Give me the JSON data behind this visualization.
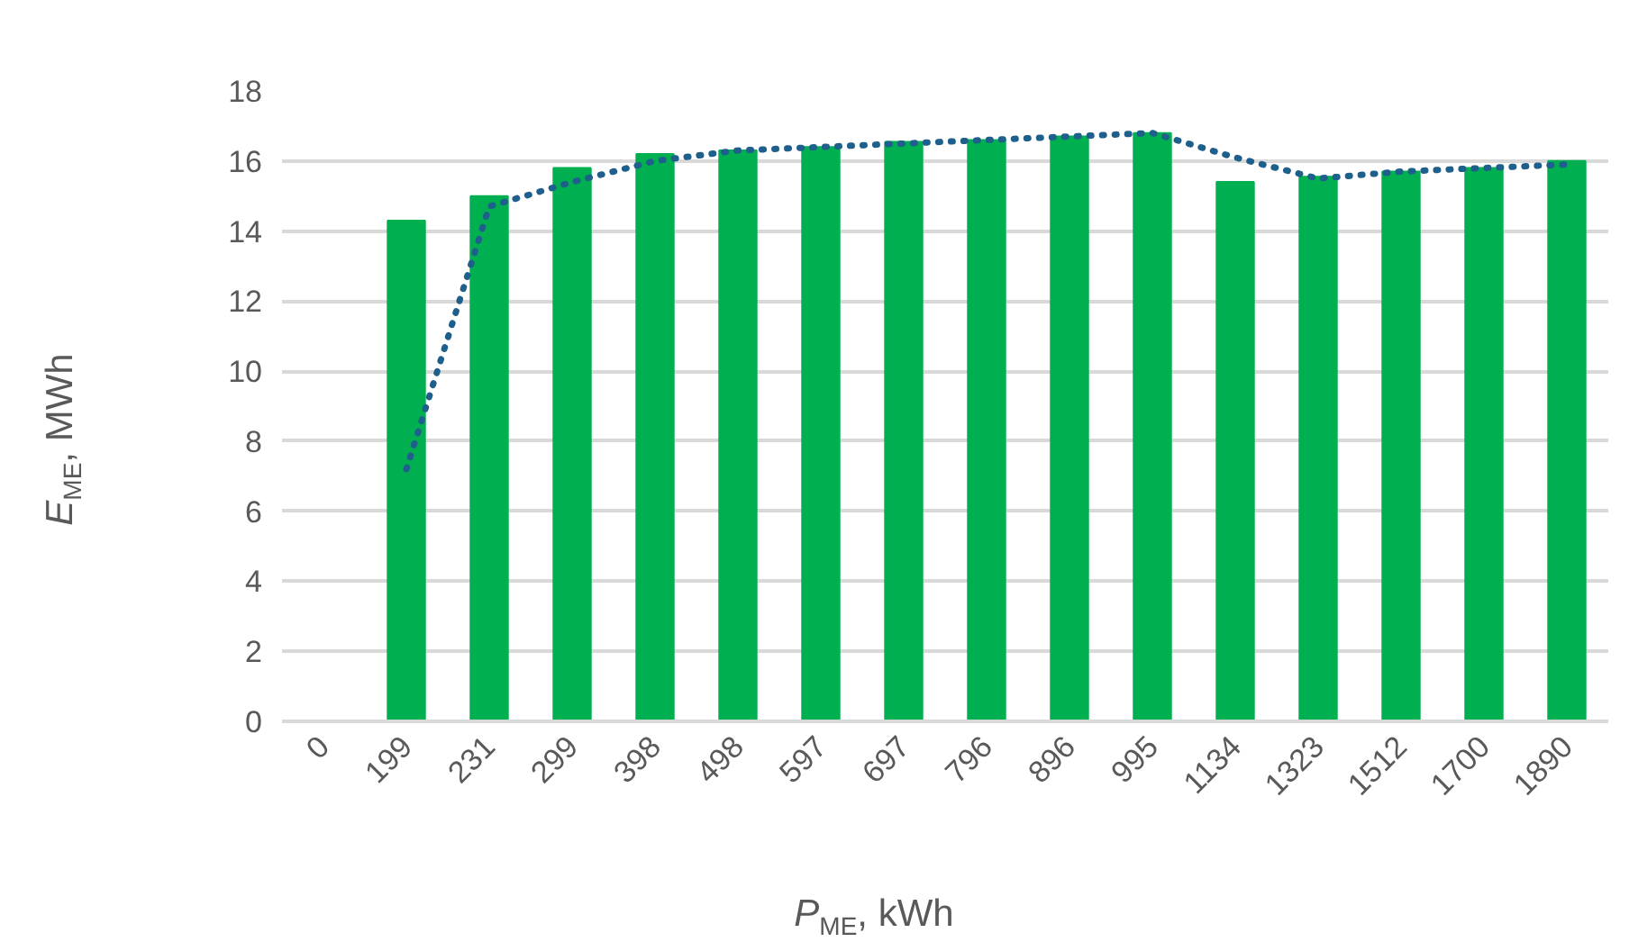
{
  "chart_data": {
    "type": "bar",
    "xlabel": "P$_{ME}$, kWh",
    "ylabel": "E$_{ME}$, MWh",
    "categories": [
      "0",
      "199",
      "231",
      "299",
      "398",
      "498",
      "597",
      "697",
      "796",
      "896",
      "995",
      "1134",
      "1323",
      "1512",
      "1700",
      "1890"
    ],
    "series": [
      {
        "color": "#00b050",
        "values": [
          null,
          14.3,
          15.0,
          15.8,
          16.2,
          16.3,
          16.4,
          16.55,
          16.6,
          16.7,
          16.8,
          15.4,
          15.55,
          15.7,
          15.8,
          16.0
        ]
      },
      {
        "type": "line",
        "color": "#1f5f8b",
        "line_style": "dotted",
        "values": [
          null,
          7.2,
          14.7,
          15.4,
          16.0,
          16.3,
          16.4,
          16.5,
          16.6,
          16.7,
          16.8,
          16.1,
          15.5,
          15.7,
          15.8,
          15.9
        ]
      }
    ],
    "ylim": [
      0,
      18
    ],
    "yticks": [
      0,
      2,
      4,
      6,
      8,
      10,
      12,
      14,
      16,
      18
    ],
    "grid": "y"
  }
}
